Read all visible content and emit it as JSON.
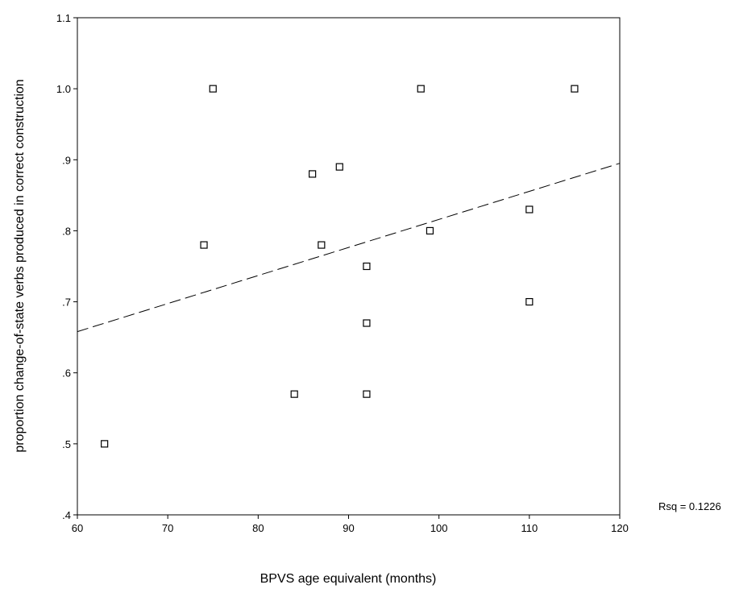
{
  "chart_data": {
    "type": "scatter",
    "xlabel": "BPVS age equivalent (months)",
    "ylabel": "proportion change-of-state verbs produced in correct construction",
    "xlim": [
      60,
      120
    ],
    "ylim": [
      0.4,
      1.1
    ],
    "x_ticks": [
      {
        "value": 60,
        "label": "60"
      },
      {
        "value": 70,
        "label": "70"
      },
      {
        "value": 80,
        "label": "80"
      },
      {
        "value": 90,
        "label": "90"
      },
      {
        "value": 100,
        "label": "100"
      },
      {
        "value": 110,
        "label": "110"
      },
      {
        "value": 120,
        "label": "120"
      }
    ],
    "y_ticks": [
      {
        "value": 0.4,
        "label": ".4"
      },
      {
        "value": 0.5,
        "label": ".5"
      },
      {
        "value": 0.6,
        "label": ".6"
      },
      {
        "value": 0.7,
        "label": ".7"
      },
      {
        "value": 0.8,
        "label": ".8"
      },
      {
        "value": 0.9,
        "label": ".9"
      },
      {
        "value": 1.0,
        "label": "1.0"
      },
      {
        "value": 1.1,
        "label": "1.1"
      }
    ],
    "points": [
      {
        "x": 63,
        "y": 0.5
      },
      {
        "x": 74,
        "y": 0.78
      },
      {
        "x": 75,
        "y": 1.0
      },
      {
        "x": 84,
        "y": 0.57
      },
      {
        "x": 86,
        "y": 0.88
      },
      {
        "x": 87,
        "y": 0.78
      },
      {
        "x": 89,
        "y": 0.89
      },
      {
        "x": 92,
        "y": 0.75
      },
      {
        "x": 92,
        "y": 0.67
      },
      {
        "x": 92,
        "y": 0.57
      },
      {
        "x": 98,
        "y": 1.0
      },
      {
        "x": 99,
        "y": 0.8
      },
      {
        "x": 110,
        "y": 0.83
      },
      {
        "x": 110,
        "y": 0.7
      },
      {
        "x": 115,
        "y": 1.0
      }
    ],
    "fit_line": {
      "x0": 60,
      "y0": 0.658,
      "x1": 120,
      "y1": 0.895,
      "style": "dashed"
    },
    "annotation": "Rsq = 0.1226",
    "marker": "hollow-square",
    "grid": false,
    "colors": {
      "ink": "#000000",
      "background": "#ffffff"
    }
  }
}
